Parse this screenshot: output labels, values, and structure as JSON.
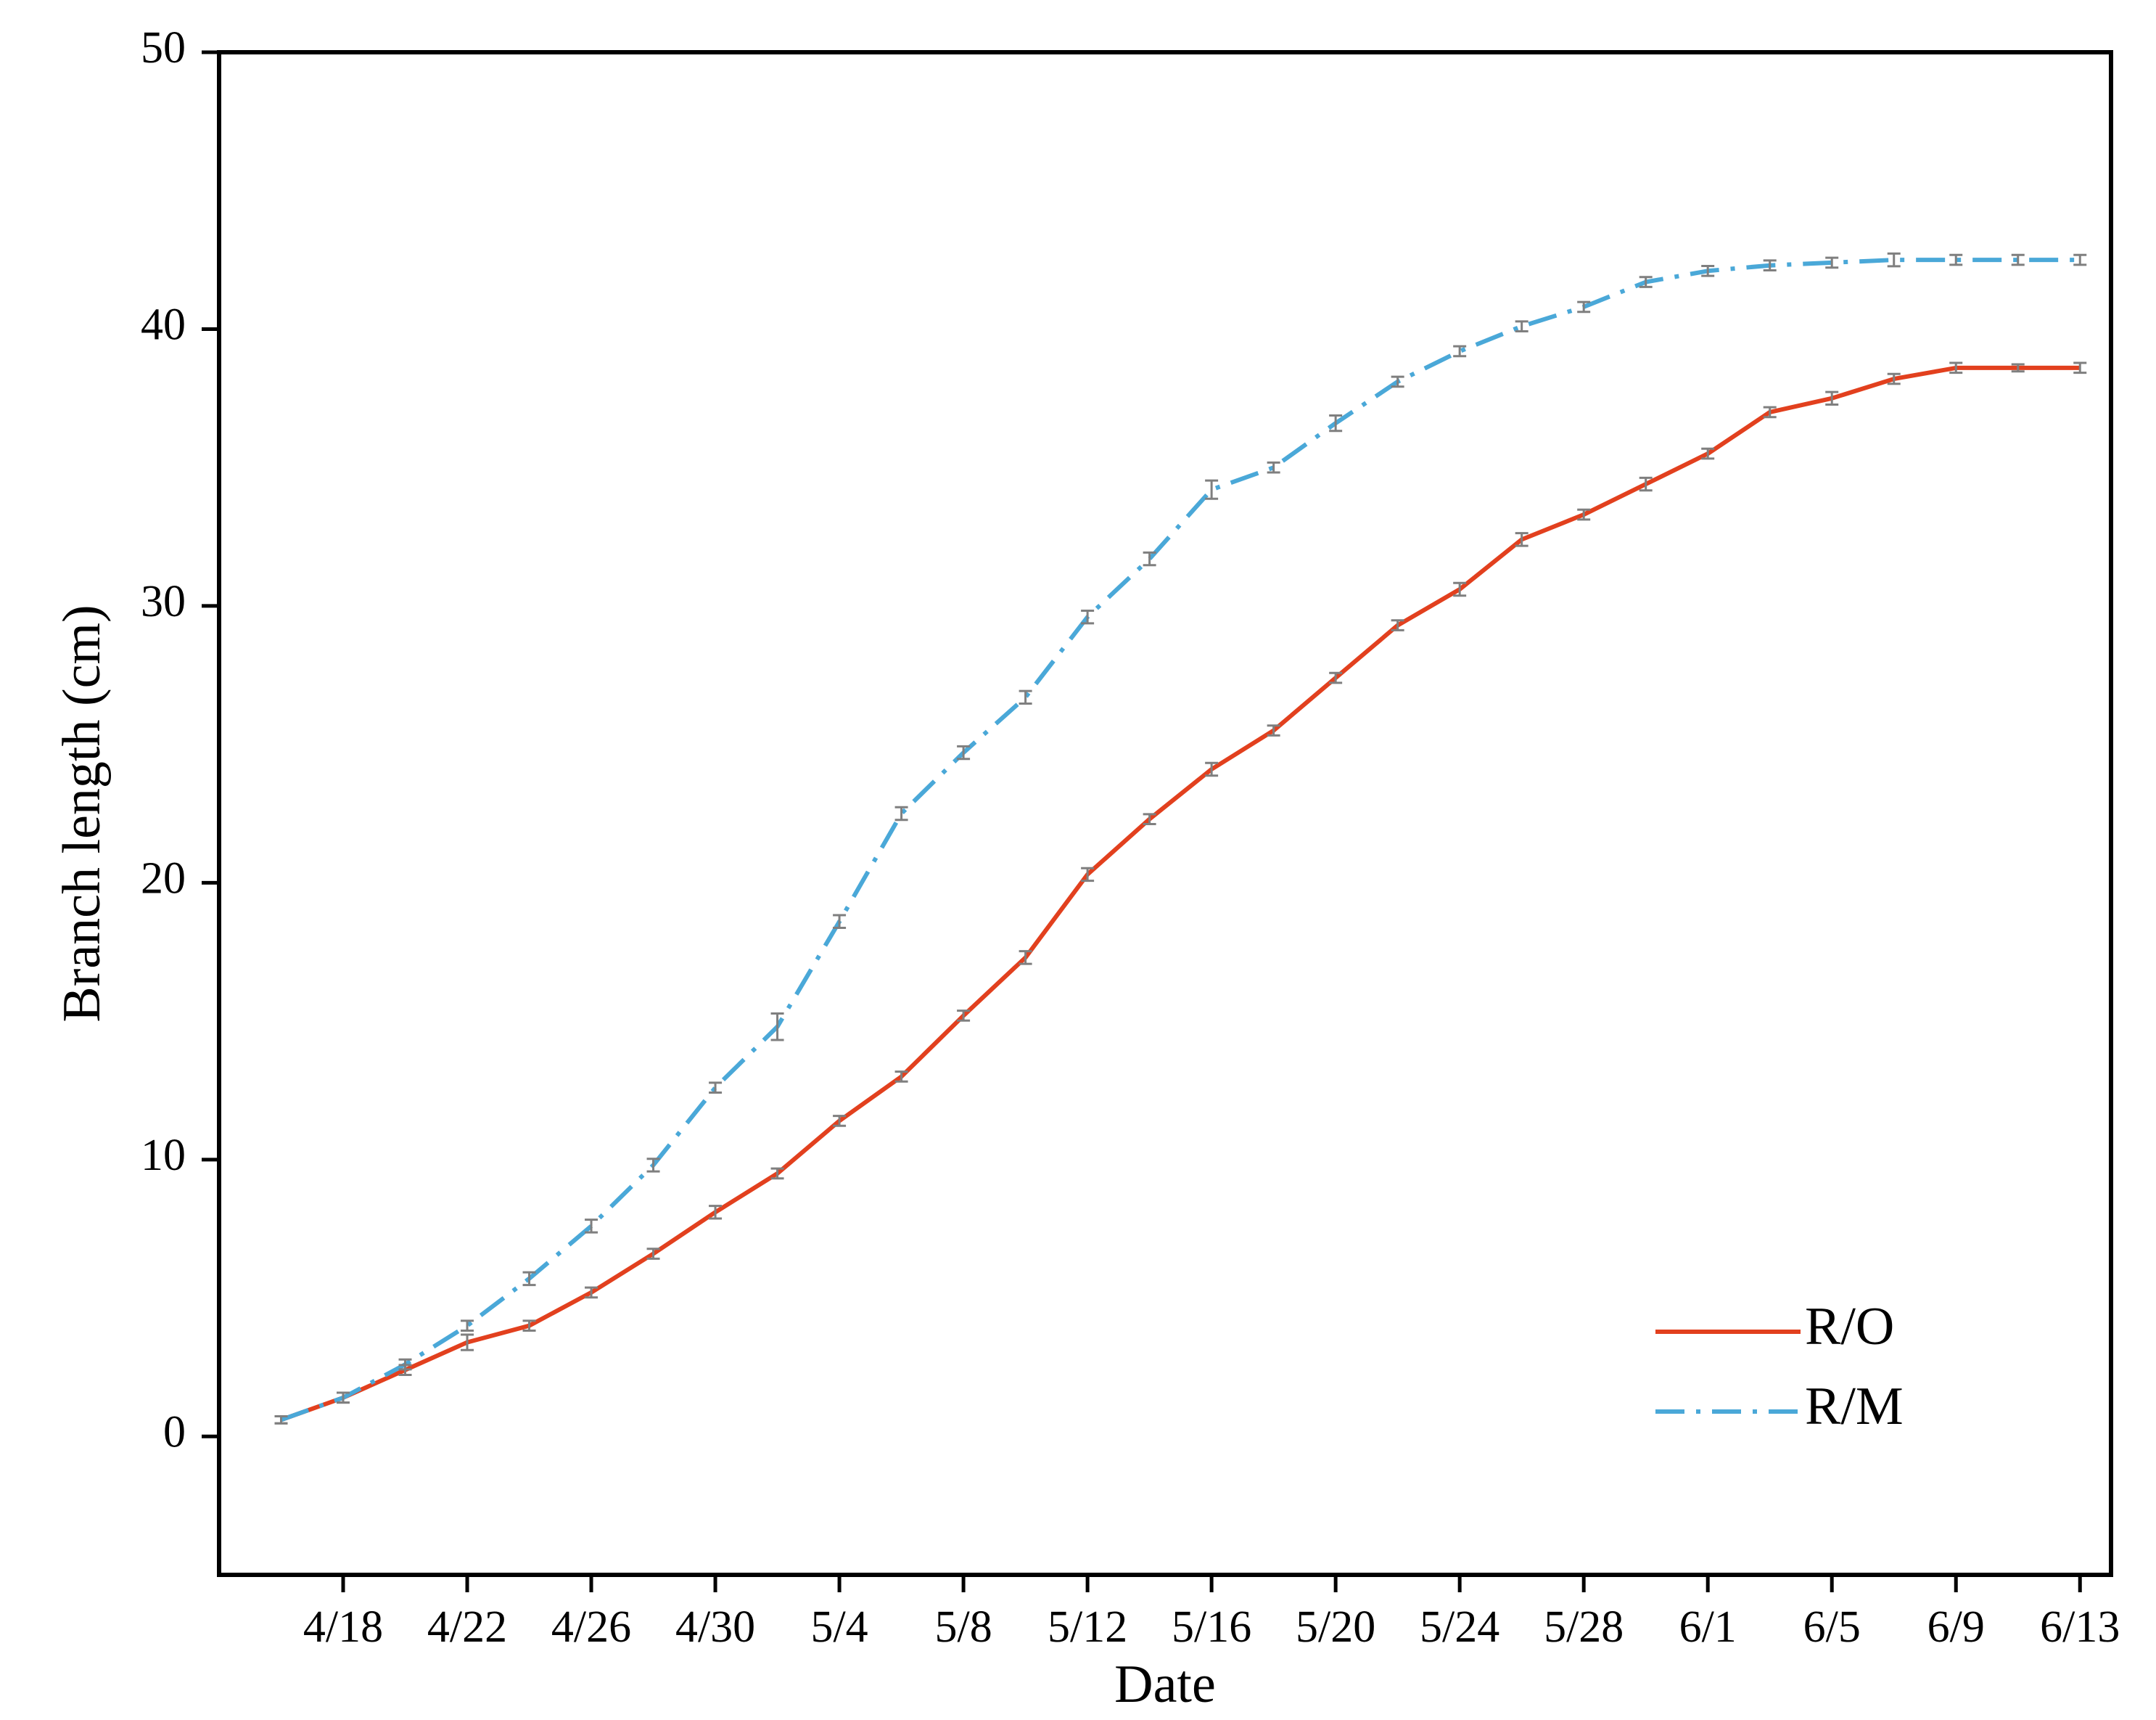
{
  "chart_data": {
    "type": "line",
    "xlabel": "Date",
    "ylabel": "Branch length (cm)",
    "ylim": [
      -5,
      50
    ],
    "yticks": [
      0,
      10,
      20,
      30,
      40,
      50
    ],
    "x_tick_labels": [
      "4/18",
      "4/22",
      "4/26",
      "4/30",
      "5/4",
      "5/8",
      "5/12",
      "5/16",
      "5/20",
      "5/24",
      "5/28",
      "6/1",
      "6/5",
      "6/9",
      "6/13"
    ],
    "x_tick_dates": [
      "2024-04-18",
      "2024-04-22",
      "2024-04-26",
      "2024-04-30",
      "2024-05-04",
      "2024-05-08",
      "2024-05-12",
      "2024-05-16",
      "2024-05-20",
      "2024-05-24",
      "2024-05-28",
      "2024-06-01",
      "2024-06-05",
      "2024-06-09",
      "2024-06-13"
    ],
    "xlim": [
      "2024-04-14",
      "2024-06-14"
    ],
    "x": [
      "2024-04-16",
      "2024-04-18",
      "2024-04-20",
      "2024-04-22",
      "2024-04-24",
      "2024-04-26",
      "2024-04-28",
      "2024-04-30",
      "2024-05-02",
      "2024-05-04",
      "2024-05-06",
      "2024-05-08",
      "2024-05-10",
      "2024-05-12",
      "2024-05-14",
      "2024-05-16",
      "2024-05-18",
      "2024-05-20",
      "2024-05-22",
      "2024-05-24",
      "2024-05-26",
      "2024-05-28",
      "2024-05-30",
      "2024-06-01",
      "2024-06-03",
      "2024-06-05",
      "2024-06-07",
      "2024-06-09",
      "2024-06-11",
      "2024-06-13"
    ],
    "series": [
      {
        "name": "R/O",
        "color": "#e2401e",
        "style": "solid",
        "values": [
          0.6,
          1.4,
          2.4,
          3.4,
          4.0,
          5.2,
          6.6,
          8.1,
          9.5,
          11.4,
          13.0,
          15.2,
          17.3,
          20.3,
          22.3,
          24.1,
          25.5,
          27.4,
          29.3,
          30.6,
          32.4,
          33.3,
          34.4,
          35.5,
          37.0,
          37.5,
          38.2,
          38.6,
          38.6,
          38.6
        ],
        "errors": [
          0.05,
          0.1,
          0.1,
          0.2,
          0.1,
          0.1,
          0.1,
          0.15,
          0.1,
          0.1,
          0.1,
          0.1,
          0.15,
          0.15,
          0.1,
          0.15,
          0.1,
          0.1,
          0.1,
          0.15,
          0.15,
          0.1,
          0.15,
          0.1,
          0.1,
          0.15,
          0.1,
          0.1,
          0.05,
          0.1
        ]
      },
      {
        "name": "R/M",
        "color": "#4aa8d8",
        "style": "dashdot",
        "values": [
          0.6,
          1.4,
          2.6,
          4.0,
          5.7,
          7.6,
          9.8,
          12.6,
          14.8,
          18.6,
          22.5,
          24.7,
          26.7,
          29.6,
          31.7,
          34.2,
          35.0,
          36.6,
          38.1,
          39.2,
          40.1,
          40.8,
          41.7,
          42.1,
          42.3,
          42.4,
          42.5,
          42.5,
          42.5,
          42.5
        ],
        "errors": [
          0.05,
          0.1,
          0.1,
          0.1,
          0.15,
          0.15,
          0.15,
          0.1,
          0.4,
          0.15,
          0.15,
          0.15,
          0.15,
          0.15,
          0.15,
          0.25,
          0.1,
          0.2,
          0.1,
          0.1,
          0.1,
          0.1,
          0.1,
          0.1,
          0.1,
          0.1,
          0.15,
          0.1,
          0.1,
          0.1
        ]
      }
    ],
    "error_bar_color": "#7f7f7f",
    "legend_position": "bottom-right",
    "grid": false
  }
}
